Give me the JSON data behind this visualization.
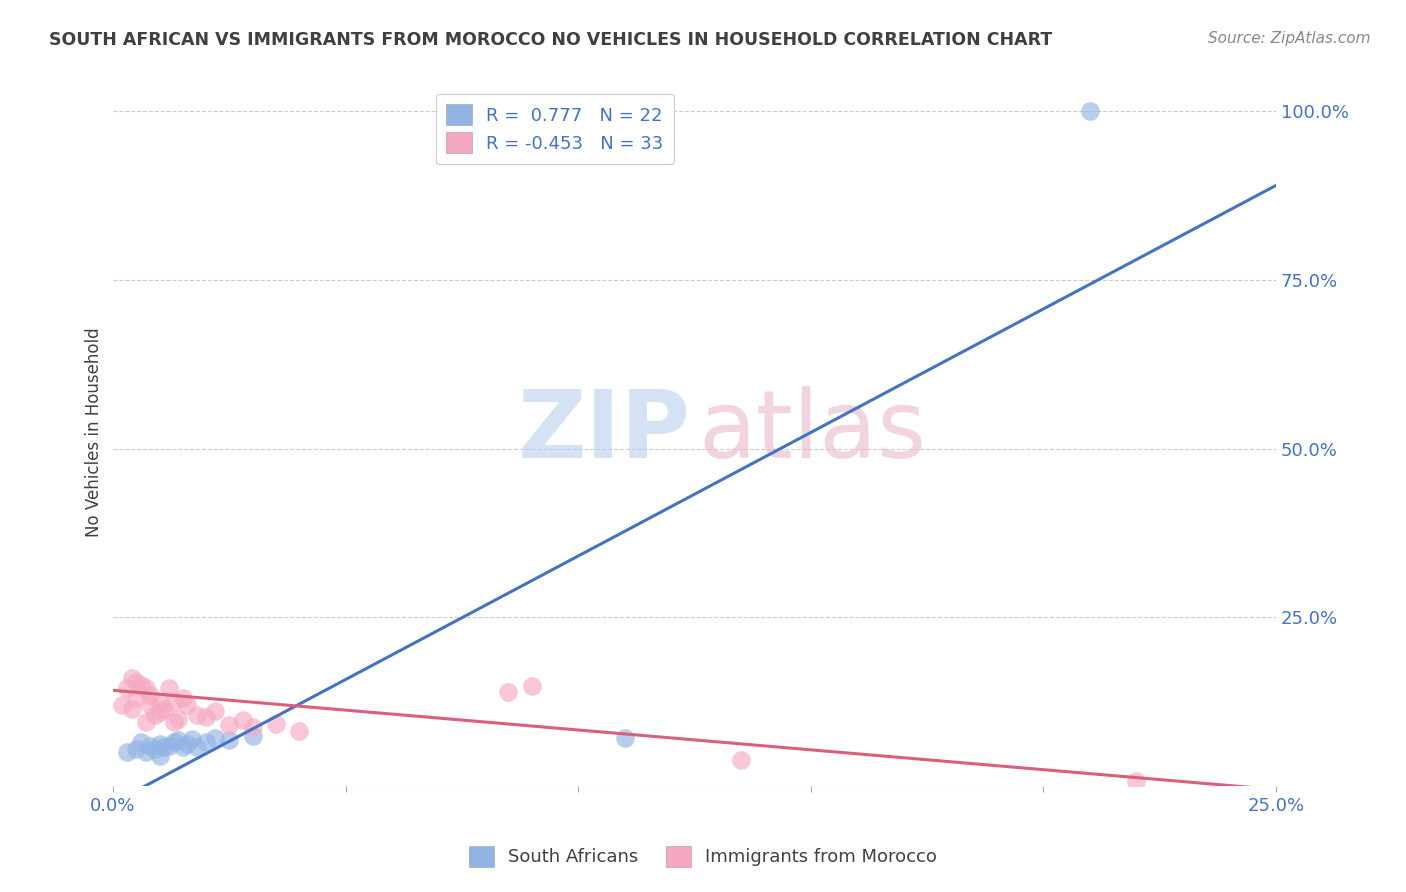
{
  "title": "SOUTH AFRICAN VS IMMIGRANTS FROM MOROCCO NO VEHICLES IN HOUSEHOLD CORRELATION CHART",
  "source": "Source: ZipAtlas.com",
  "ylabel": "No Vehicles in Household",
  "xlabel_blue": "South Africans",
  "xlabel_pink": "Immigrants from Morocco",
  "xlim": [
    0.0,
    0.25
  ],
  "ylim": [
    0.0,
    1.05
  ],
  "x_tick_positions": [
    0.0,
    0.05,
    0.1,
    0.15,
    0.2,
    0.25
  ],
  "x_tick_labels": [
    "0.0%",
    "",
    "",
    "",
    "",
    "25.0%"
  ],
  "y_tick_positions": [
    0.0,
    0.25,
    0.5,
    0.75,
    1.0
  ],
  "y_tick_labels": [
    "",
    "25.0%",
    "50.0%",
    "75.0%",
    "100.0%"
  ],
  "blue_R": 0.777,
  "blue_N": 22,
  "pink_R": -0.453,
  "pink_N": 33,
  "blue_color": "#92b4e3",
  "pink_color": "#f5a8c0",
  "blue_line_color": "#4472c4",
  "pink_line_color": "#d9607a",
  "title_color": "#404040",
  "axis_label_color": "#4472c4",
  "grid_color": "#cccccc",
  "blue_scatter_x": [
    0.003,
    0.005,
    0.006,
    0.007,
    0.008,
    0.009,
    0.01,
    0.01,
    0.011,
    0.012,
    0.013,
    0.014,
    0.015,
    0.016,
    0.017,
    0.018,
    0.02,
    0.022,
    0.025,
    0.03,
    0.11,
    0.21
  ],
  "blue_scatter_y": [
    0.05,
    0.055,
    0.065,
    0.05,
    0.06,
    0.055,
    0.062,
    0.045,
    0.058,
    0.06,
    0.065,
    0.068,
    0.058,
    0.062,
    0.07,
    0.058,
    0.065,
    0.072,
    0.068,
    0.075,
    0.072,
    1.0
  ],
  "pink_scatter_x": [
    0.002,
    0.003,
    0.004,
    0.004,
    0.005,
    0.005,
    0.006,
    0.007,
    0.007,
    0.008,
    0.008,
    0.009,
    0.01,
    0.01,
    0.011,
    0.012,
    0.013,
    0.013,
    0.014,
    0.015,
    0.016,
    0.018,
    0.02,
    0.022,
    0.025,
    0.028,
    0.03,
    0.035,
    0.04,
    0.085,
    0.09,
    0.135,
    0.22
  ],
  "pink_scatter_y": [
    0.12,
    0.145,
    0.115,
    0.16,
    0.13,
    0.155,
    0.15,
    0.095,
    0.145,
    0.12,
    0.135,
    0.105,
    0.11,
    0.125,
    0.115,
    0.145,
    0.125,
    0.095,
    0.1,
    0.13,
    0.12,
    0.105,
    0.102,
    0.112,
    0.09,
    0.098,
    0.088,
    0.092,
    0.082,
    0.14,
    0.148,
    0.038,
    0.008
  ],
  "blue_line_x": [
    0.0,
    0.25
  ],
  "blue_line_y": [
    -0.025,
    0.89
  ],
  "pink_line_x": [
    0.0,
    0.25
  ],
  "pink_line_y": [
    0.142,
    -0.005
  ]
}
